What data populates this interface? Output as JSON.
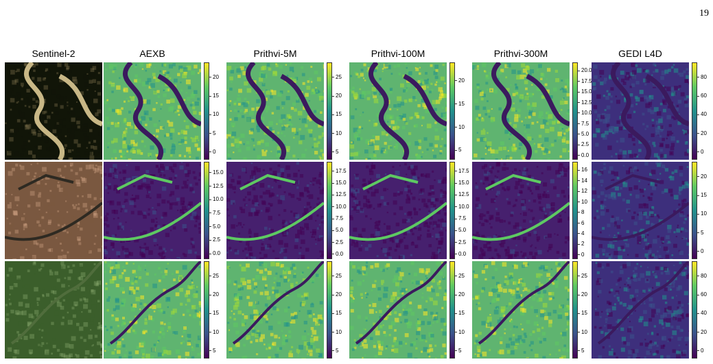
{
  "page_number": "19",
  "columns": [
    "Sentinel-2",
    "AEXB",
    "Prithvi-5M",
    "Prithvi-100M",
    "Prithvi-300M",
    "GEDI L4D"
  ],
  "rows": [
    {
      "rgb_colors": [
        "#111508",
        "#8a7a54"
      ],
      "colorbars": [
        [
          "0",
          "5",
          "10",
          "15",
          "20"
        ],
        [
          "5",
          "10",
          "15",
          "20",
          "25"
        ],
        [
          "5",
          "10",
          "15",
          "20"
        ],
        [
          "0.0",
          "2.5",
          "5.0",
          "7.5",
          "10.0",
          "12.5",
          "15.0",
          "17.5",
          "20.0"
        ],
        [
          "0",
          "20",
          "40",
          "60",
          "80"
        ]
      ]
    },
    {
      "rgb_colors": [
        "#7a5840",
        "#d7a98a"
      ],
      "colorbars": [
        [
          "0.0",
          "2.5",
          "5.0",
          "7.5",
          "10.0",
          "12.5",
          "15.0"
        ],
        [
          "0.0",
          "2.5",
          "5.0",
          "7.5",
          "10.0",
          "12.5",
          "15.0",
          "17.5"
        ],
        [
          "0.0",
          "2.5",
          "5.0",
          "7.5",
          "10.0",
          "12.5",
          "15.0",
          "17.5"
        ],
        [
          "0",
          "2",
          "4",
          "6",
          "8",
          "10",
          "12",
          "14",
          "16"
        ],
        [
          "0",
          "5",
          "10",
          "15",
          "20"
        ]
      ]
    },
    {
      "rgb_colors": [
        "#3b5e2b",
        "#8fae72"
      ],
      "colorbars": [
        [
          "5",
          "10",
          "15",
          "20",
          "25"
        ],
        [
          "5",
          "10",
          "15",
          "20",
          "25"
        ],
        [
          "5",
          "10",
          "15",
          "20",
          "25"
        ],
        [
          "5",
          "10",
          "15",
          "20",
          "25"
        ],
        [
          "0",
          "20",
          "40",
          "60",
          "80"
        ]
      ]
    }
  ]
}
